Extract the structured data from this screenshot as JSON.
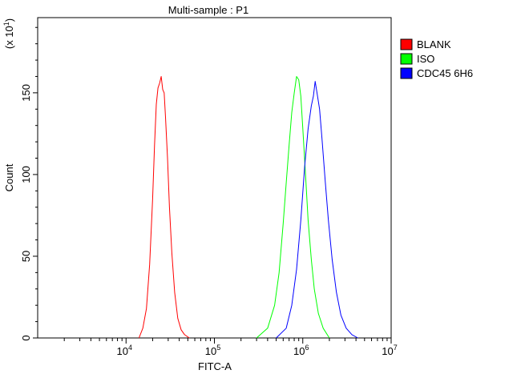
{
  "chart_data": {
    "type": "line",
    "title": "Multi-sample : P1",
    "xlabel": "FITC-A",
    "ylabel": "Count",
    "y_multiplier_label": "(x 10",
    "y_multiplier_exp": "1",
    "y_multiplier_close": ")",
    "x_scale": "log",
    "xlim": [
      1000,
      10000000
    ],
    "ylim": [
      0,
      196
    ],
    "x_ticks": [
      {
        "value": 10000,
        "base": "10",
        "exp": "4"
      },
      {
        "value": 100000,
        "base": "10",
        "exp": "5"
      },
      {
        "value": 1000000,
        "base": "10",
        "exp": "6"
      },
      {
        "value": 10000000,
        "base": "10",
        "exp": "7"
      }
    ],
    "y_ticks": [
      {
        "value": 0,
        "label": "0"
      },
      {
        "value": 50,
        "label": "50"
      },
      {
        "value": 100,
        "label": "100"
      },
      {
        "value": 150,
        "label": "150"
      }
    ],
    "grid": false,
    "legend_position": "top-right",
    "series": [
      {
        "name": "BLANK",
        "color": "#ff0000",
        "x": [
          14000,
          15500,
          17000,
          18500,
          20000,
          21000,
          22000,
          23000,
          24000,
          25000,
          26000,
          27000,
          28000,
          29500,
          31000,
          33000,
          35500,
          38500,
          42000,
          46000,
          52000
        ],
        "y": [
          0,
          6,
          18,
          45,
          85,
          118,
          143,
          153,
          156,
          160,
          152,
          150,
          135,
          110,
          80,
          52,
          28,
          12,
          5,
          2,
          0
        ]
      },
      {
        "name": "ISO",
        "color": "#00ff00",
        "x": [
          300000,
          400000,
          480000,
          540000,
          600000,
          650000,
          700000,
          750000,
          800000,
          850000,
          900000,
          950000,
          1000000,
          1080000,
          1150000,
          1250000,
          1350000,
          1500000,
          1700000,
          2000000
        ],
        "y": [
          0,
          6,
          20,
          40,
          70,
          95,
          118,
          138,
          150,
          160,
          158,
          148,
          128,
          98,
          72,
          48,
          30,
          15,
          6,
          0
        ]
      },
      {
        "name": "CDC45 6H6",
        "color": "#0000ff",
        "x": [
          500000,
          650000,
          750000,
          850000,
          950000,
          1050000,
          1150000,
          1250000,
          1320000,
          1380000,
          1450000,
          1550000,
          1650000,
          1800000,
          1950000,
          2150000,
          2400000,
          2700000,
          3100000,
          3600000,
          4200000
        ],
        "y": [
          0,
          6,
          20,
          42,
          72,
          105,
          128,
          142,
          148,
          157,
          150,
          140,
          122,
          95,
          72,
          48,
          28,
          14,
          6,
          2,
          0
        ]
      }
    ]
  }
}
